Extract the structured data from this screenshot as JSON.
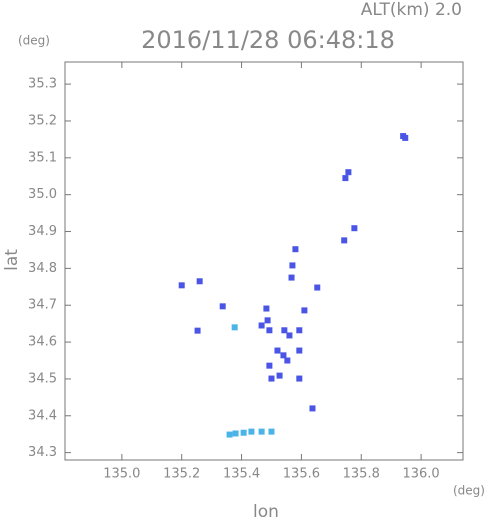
{
  "chart_data": {
    "type": "scatter",
    "title": "2016/11/28 06:48:18",
    "subtitle": "ALT(km) 2.0",
    "y_unit": "(deg)",
    "x_unit": "(deg)",
    "x_label": "lon",
    "y_label": "lat",
    "xlim": [
      134.81,
      136.14
    ],
    "ylim": [
      34.28,
      35.36
    ],
    "xticks": [
      {
        "value": 135,
        "label": "135.0"
      },
      135.2,
      135.4,
      135.6,
      135.8,
      {
        "value": 136,
        "label": "136.0"
      }
    ],
    "yticks": [
      34.3,
      34.4,
      34.5,
      34.6,
      34.7,
      34.8,
      34.9,
      {
        "value": 35,
        "label": "35.0"
      },
      35.1,
      35.2,
      35.3
    ],
    "series": [
      {
        "color": "#4a55e6",
        "x": [
          135.94,
          135.947,
          135.757,
          135.747,
          135.743,
          135.777,
          135.58,
          135.57,
          135.2,
          135.26,
          135.567,
          135.653,
          135.337,
          135.483,
          135.487,
          135.467,
          135.493,
          135.61,
          135.253,
          135.543,
          135.56,
          135.593,
          135.593,
          135.52,
          135.54,
          135.553,
          135.493,
          135.5,
          135.527,
          135.593,
          135.637
        ],
        "y": [
          35.159,
          35.154,
          35.061,
          35.045,
          34.876,
          34.909,
          34.852,
          34.808,
          34.754,
          34.765,
          34.775,
          34.748,
          34.697,
          34.691,
          34.659,
          34.645,
          34.632,
          34.686,
          34.631,
          34.632,
          34.618,
          34.632,
          34.577,
          34.577,
          34.564,
          34.55,
          34.536,
          34.501,
          34.509,
          34.501,
          34.42
        ]
      },
      {
        "color": "#4ab4e8",
        "x": [
          135.36,
          135.38,
          135.407,
          135.433,
          135.467,
          135.5,
          135.377
        ],
        "y": [
          34.349,
          34.352,
          34.354,
          34.357,
          34.357,
          34.357,
          34.64
        ]
      }
    ]
  }
}
